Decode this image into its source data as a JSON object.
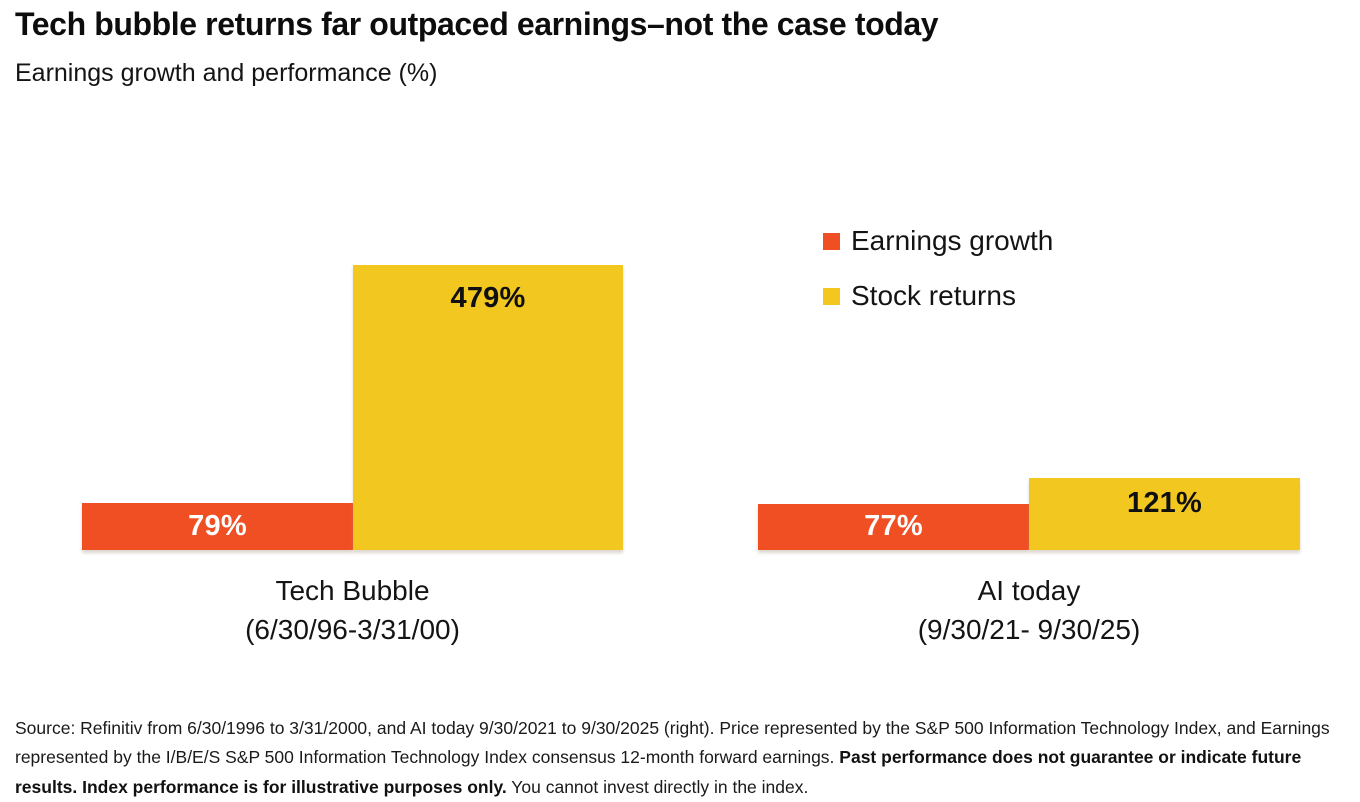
{
  "chart_data": {
    "type": "bar",
    "title": "Tech bubble returns far outpaced earnings–not the case today",
    "subtitle": "Earnings growth and performance (%)",
    "unit": "%",
    "grid": false,
    "axes_hidden": true,
    "legend_position": "top-right",
    "ylim": [
      0,
      479
    ],
    "categories": [
      "Tech Bubble (6/30/96-3/31/00)",
      "AI today (9/30/21- 9/30/25)"
    ],
    "category_labels": [
      {
        "line1": "Tech Bubble",
        "line2": "(6/30/96-3/31/00)"
      },
      {
        "line1": "AI today",
        "line2": "(9/30/21- 9/30/25)"
      }
    ],
    "series": [
      {
        "name": "Earnings growth",
        "color": "#F04E23",
        "values": [
          79,
          77
        ],
        "labels": [
          "79%",
          "77%"
        ]
      },
      {
        "name": "Stock returns",
        "color": "#F2C71F",
        "values": [
          479,
          121
        ],
        "labels": [
          "479%",
          "121%"
        ]
      }
    ]
  },
  "source": {
    "normal_1": "Source: Refinitiv from 6/30/1996 to 3/31/2000, and AI today 9/30/2021 to 9/30/2025 (right). Price represented by the S&P 500 Information Technology Index, and Earnings represented by the I/B/E/S S&P 500 Information Technology Index consensus 12-month forward earnings. ",
    "bold": "Past performance does not guarantee or indicate future results. Index performance is for illustrative purposes only.",
    "normal_2": " You cannot invest directly in the index."
  },
  "colors": {
    "earnings_growth": "#F04E23",
    "stock_returns": "#F2C71F",
    "title_text": "#0D0D0D",
    "body_text": "#1A1A1A",
    "background": "#FFFFFF",
    "bar_label_on_orange": "#FFFFFF",
    "bar_label_on_yellow": "#101010"
  }
}
